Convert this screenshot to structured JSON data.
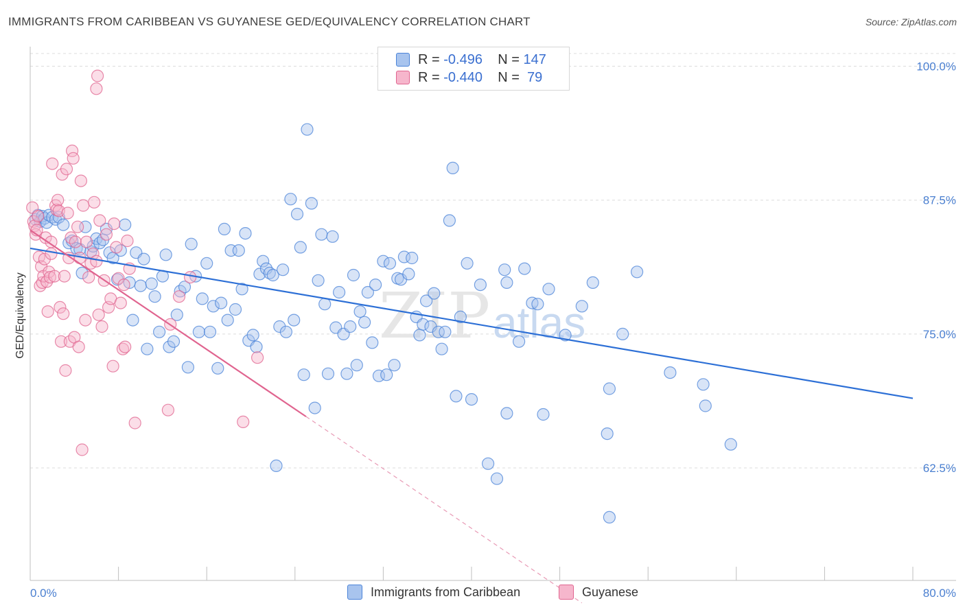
{
  "title": "IMMIGRANTS FROM CARIBBEAN VS GUYANESE GED/EQUIVALENCY CORRELATION CHART",
  "source": "Source: ZipAtlas.com",
  "watermark": {
    "zip": "ZIP",
    "atlas": "atlas"
  },
  "legend_top": [
    {
      "r_label": "R = ",
      "r_value": "-0.496",
      "n_label": "N = ",
      "n_value": "147",
      "color": "#a8c4ee"
    },
    {
      "r_label": "R = ",
      "r_value": "-0.440",
      "n_label": "N = ",
      "n_value": " 79",
      "color": "#f6b6cc"
    }
  ],
  "legend_bottom": [
    {
      "label": "Immigrants from Caribbean",
      "color": "#a8c4ee"
    },
    {
      "label": "Guyanese",
      "color": "#f6b6cc"
    }
  ],
  "chart_data": {
    "type": "scatter",
    "title": "IMMIGRANTS FROM CARIBBEAN VS GUYANESE GED/EQUIVALENCY CORRELATION CHART",
    "xlabel": "",
    "ylabel": "GED/Equivalency",
    "xlim": [
      0,
      80
    ],
    "ylim": [
      52,
      102
    ],
    "x_tick_labels": [
      "0.0%",
      "80.0%"
    ],
    "y_ticks": [
      62.5,
      75.0,
      87.5,
      100.0
    ],
    "y_tick_labels": [
      "62.5%",
      "75.0%",
      "87.5%",
      "100.0%"
    ],
    "grid": true,
    "legend_position": "top-center",
    "series": [
      {
        "name": "Immigrants from Caribbean",
        "color": "#4a83d8",
        "fill": "#a8c4ee",
        "trend": {
          "x": [
            0,
            80
          ],
          "y": [
            83.0,
            69.0
          ]
        },
        "points": [
          [
            0.5,
            85.7
          ],
          [
            0.7,
            86.1
          ],
          [
            0.9,
            85.5
          ],
          [
            1.1,
            86.0
          ],
          [
            1.3,
            85.8
          ],
          [
            1.5,
            85.4
          ],
          [
            1.7,
            86.1
          ],
          [
            2.0,
            85.9
          ],
          [
            2.3,
            85.7
          ],
          [
            2.6,
            85.9
          ],
          [
            3.0,
            85.2
          ],
          [
            3.5,
            83.5
          ],
          [
            3.8,
            83.7
          ],
          [
            4.2,
            83.0
          ],
          [
            4.5,
            82.9
          ],
          [
            4.7,
            80.7
          ],
          [
            5.0,
            85.0
          ],
          [
            5.5,
            82.7
          ],
          [
            5.7,
            83.2
          ],
          [
            6.0,
            83.9
          ],
          [
            6.3,
            83.5
          ],
          [
            6.6,
            83.8
          ],
          [
            6.9,
            84.8
          ],
          [
            7.2,
            82.6
          ],
          [
            7.5,
            82.1
          ],
          [
            7.9,
            80.1
          ],
          [
            8.2,
            82.8
          ],
          [
            8.6,
            85.2
          ],
          [
            9.0,
            79.8
          ],
          [
            9.3,
            76.3
          ],
          [
            9.6,
            82.6
          ],
          [
            10.0,
            79.5
          ],
          [
            10.3,
            82.0
          ],
          [
            10.6,
            73.6
          ],
          [
            11.0,
            79.7
          ],
          [
            11.3,
            78.5
          ],
          [
            11.7,
            75.2
          ],
          [
            12.0,
            80.4
          ],
          [
            12.3,
            82.4
          ],
          [
            12.6,
            73.8
          ],
          [
            13.0,
            74.3
          ],
          [
            13.3,
            76.8
          ],
          [
            13.6,
            79.0
          ],
          [
            14.0,
            79.4
          ],
          [
            14.3,
            71.9
          ],
          [
            14.6,
            83.4
          ],
          [
            15.0,
            80.4
          ],
          [
            15.3,
            75.2
          ],
          [
            15.6,
            78.3
          ],
          [
            16.0,
            81.6
          ],
          [
            16.3,
            75.2
          ],
          [
            16.6,
            77.6
          ],
          [
            17.0,
            71.8
          ],
          [
            17.3,
            77.9
          ],
          [
            17.6,
            84.8
          ],
          [
            17.9,
            76.3
          ],
          [
            18.2,
            82.8
          ],
          [
            18.6,
            77.3
          ],
          [
            18.9,
            82.8
          ],
          [
            19.2,
            79.2
          ],
          [
            19.5,
            84.4
          ],
          [
            19.8,
            74.4
          ],
          [
            20.2,
            74.9
          ],
          [
            20.5,
            73.8
          ],
          [
            20.8,
            80.6
          ],
          [
            21.1,
            81.8
          ],
          [
            21.4,
            81.1
          ],
          [
            21.7,
            80.7
          ],
          [
            22.0,
            80.5
          ],
          [
            22.3,
            62.7
          ],
          [
            22.6,
            75.7
          ],
          [
            22.9,
            81.0
          ],
          [
            23.2,
            75.2
          ],
          [
            23.6,
            87.6
          ],
          [
            23.9,
            76.3
          ],
          [
            24.2,
            86.2
          ],
          [
            24.5,
            83.1
          ],
          [
            24.8,
            71.2
          ],
          [
            25.1,
            94.1
          ],
          [
            25.5,
            87.2
          ],
          [
            25.8,
            68.1
          ],
          [
            26.1,
            80.0
          ],
          [
            26.4,
            84.3
          ],
          [
            26.7,
            77.8
          ],
          [
            27.0,
            71.3
          ],
          [
            27.4,
            84.1
          ],
          [
            27.7,
            75.6
          ],
          [
            28.0,
            78.9
          ],
          [
            28.4,
            75.0
          ],
          [
            28.7,
            71.3
          ],
          [
            29.0,
            75.7
          ],
          [
            29.3,
            80.5
          ],
          [
            29.6,
            72.1
          ],
          [
            29.9,
            77.1
          ],
          [
            30.3,
            76.1
          ],
          [
            30.6,
            78.9
          ],
          [
            31.0,
            74.2
          ],
          [
            31.3,
            79.6
          ],
          [
            31.6,
            71.1
          ],
          [
            32.0,
            81.8
          ],
          [
            32.3,
            71.2
          ],
          [
            32.6,
            81.6
          ],
          [
            33.0,
            72.1
          ],
          [
            33.3,
            80.2
          ],
          [
            33.6,
            80.1
          ],
          [
            33.9,
            82.2
          ],
          [
            34.3,
            80.6
          ],
          [
            34.6,
            82.1
          ],
          [
            35.0,
            76.6
          ],
          [
            35.3,
            74.9
          ],
          [
            35.6,
            75.9
          ],
          [
            35.9,
            78.1
          ],
          [
            36.3,
            75.7
          ],
          [
            36.6,
            78.8
          ],
          [
            37.0,
            75.2
          ],
          [
            37.3,
            73.6
          ],
          [
            37.6,
            75.2
          ],
          [
            38.0,
            85.6
          ],
          [
            38.3,
            90.5
          ],
          [
            38.6,
            69.2
          ],
          [
            39.0,
            76.6
          ],
          [
            39.6,
            81.6
          ],
          [
            40.0,
            68.9
          ],
          [
            40.8,
            79.6
          ],
          [
            41.5,
            62.9
          ],
          [
            42.3,
            61.5
          ],
          [
            43.0,
            81.0
          ],
          [
            43.2,
            79.8
          ],
          [
            44.3,
            74.3
          ],
          [
            44.8,
            81.1
          ],
          [
            45.5,
            77.9
          ],
          [
            46.0,
            77.8
          ],
          [
            47.0,
            79.2
          ],
          [
            48.5,
            74.9
          ],
          [
            50.0,
            77.6
          ],
          [
            51.0,
            79.8
          ],
          [
            52.5,
            69.9
          ],
          [
            53.7,
            75.0
          ],
          [
            55.0,
            80.8
          ],
          [
            58.0,
            71.4
          ],
          [
            61.0,
            70.3
          ],
          [
            61.2,
            68.3
          ],
          [
            63.5,
            64.7
          ],
          [
            52.3,
            65.7
          ],
          [
            46.5,
            67.5
          ],
          [
            43.2,
            67.6
          ],
          [
            52.5,
            57.9
          ]
        ]
      },
      {
        "name": "Guyanese",
        "color": "#e0648f",
        "fill": "#f6b6cc",
        "trend": {
          "x": [
            0,
            25
          ],
          "y": [
            84.7,
            67.3
          ]
        },
        "trend_dashed": {
          "x": [
            25,
            50
          ],
          "y": [
            67.3,
            49.9
          ]
        },
        "points": [
          [
            0.2,
            86.8
          ],
          [
            0.3,
            85.5
          ],
          [
            0.4,
            85.1
          ],
          [
            0.5,
            84.3
          ],
          [
            0.6,
            84.7
          ],
          [
            0.7,
            86.0
          ],
          [
            0.8,
            82.2
          ],
          [
            0.9,
            79.5
          ],
          [
            1.0,
            81.3
          ],
          [
            1.1,
            79.8
          ],
          [
            1.2,
            80.4
          ],
          [
            1.3,
            82.0
          ],
          [
            1.4,
            84.0
          ],
          [
            1.5,
            79.9
          ],
          [
            1.6,
            77.1
          ],
          [
            1.7,
            80.8
          ],
          [
            1.8,
            80.3
          ],
          [
            1.9,
            83.6
          ],
          [
            2.0,
            90.9
          ],
          [
            2.2,
            80.4
          ],
          [
            2.3,
            87.0
          ],
          [
            2.4,
            86.6
          ],
          [
            2.5,
            87.5
          ],
          [
            2.6,
            86.5
          ],
          [
            2.7,
            77.5
          ],
          [
            2.8,
            74.3
          ],
          [
            2.9,
            89.9
          ],
          [
            3.0,
            76.9
          ],
          [
            3.1,
            80.4
          ],
          [
            3.2,
            71.6
          ],
          [
            3.3,
            90.4
          ],
          [
            3.4,
            86.3
          ],
          [
            3.5,
            82.1
          ],
          [
            3.6,
            74.3
          ],
          [
            3.7,
            84.0
          ],
          [
            3.8,
            92.1
          ],
          [
            3.9,
            91.4
          ],
          [
            4.0,
            74.7
          ],
          [
            4.1,
            83.6
          ],
          [
            4.3,
            85.0
          ],
          [
            4.4,
            73.8
          ],
          [
            4.5,
            82.1
          ],
          [
            4.6,
            89.3
          ],
          [
            4.7,
            64.2
          ],
          [
            4.8,
            87.0
          ],
          [
            5.0,
            76.3
          ],
          [
            5.1,
            83.6
          ],
          [
            5.3,
            80.3
          ],
          [
            5.5,
            81.6
          ],
          [
            5.7,
            82.5
          ],
          [
            5.8,
            87.3
          ],
          [
            6.0,
            81.8
          ],
          [
            6.2,
            76.8
          ],
          [
            6.3,
            85.6
          ],
          [
            6.5,
            75.7
          ],
          [
            6.7,
            80.0
          ],
          [
            6.9,
            84.3
          ],
          [
            7.1,
            77.5
          ],
          [
            7.3,
            78.3
          ],
          [
            7.5,
            72.0
          ],
          [
            7.6,
            85.3
          ],
          [
            7.8,
            83.1
          ],
          [
            8.0,
            80.2
          ],
          [
            8.2,
            77.9
          ],
          [
            8.4,
            73.6
          ],
          [
            8.5,
            79.6
          ],
          [
            8.6,
            73.8
          ],
          [
            8.8,
            83.7
          ],
          [
            9.0,
            81.1
          ],
          [
            9.5,
            66.7
          ],
          [
            12.5,
            67.9
          ],
          [
            12.7,
            75.9
          ],
          [
            13.5,
            78.5
          ],
          [
            14.5,
            80.3
          ],
          [
            19.3,
            66.8
          ],
          [
            20.6,
            72.8
          ],
          [
            6.0,
            97.9
          ],
          [
            6.1,
            99.1
          ],
          [
            1.9,
            82.5
          ]
        ]
      }
    ]
  }
}
